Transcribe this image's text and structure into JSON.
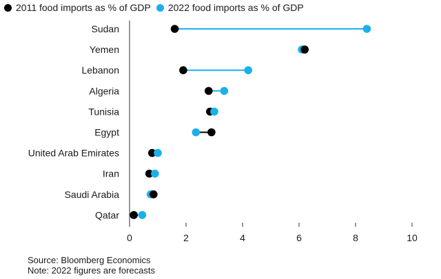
{
  "colors": {
    "series_2011": "#000000",
    "series_2022": "#1bb0ea",
    "connector": "#1bb0ea",
    "axis": "#333333"
  },
  "legend": [
    {
      "label": "2011 food imports as % of GDP",
      "color": "#000000"
    },
    {
      "label": "2022 food imports as % of GDP",
      "color": "#1bb0ea"
    }
  ],
  "chart_data": {
    "type": "dot-plot",
    "categories": [
      "Sudan",
      "Yemen",
      "Lebanon",
      "Algeria",
      "Tunisia",
      "Egypt",
      "United Arab Emirates",
      "Iran",
      "Saudi Arabia",
      "Qatar"
    ],
    "series": [
      {
        "name": "2011 food imports as % of GDP",
        "values": [
          1.6,
          6.2,
          1.9,
          2.8,
          2.85,
          2.9,
          0.8,
          0.7,
          0.85,
          0.15
        ]
      },
      {
        "name": "2022 food imports as % of GDP",
        "values": [
          8.4,
          6.1,
          4.2,
          3.35,
          3.0,
          2.35,
          1.0,
          0.9,
          0.75,
          0.45
        ]
      }
    ],
    "xlim": [
      0,
      10
    ],
    "xticks": [
      0,
      2,
      4,
      6,
      8,
      10
    ]
  },
  "notes": {
    "source": "Source: Bloomberg Economics",
    "note": "Note: 2022 figures are forecasts"
  }
}
